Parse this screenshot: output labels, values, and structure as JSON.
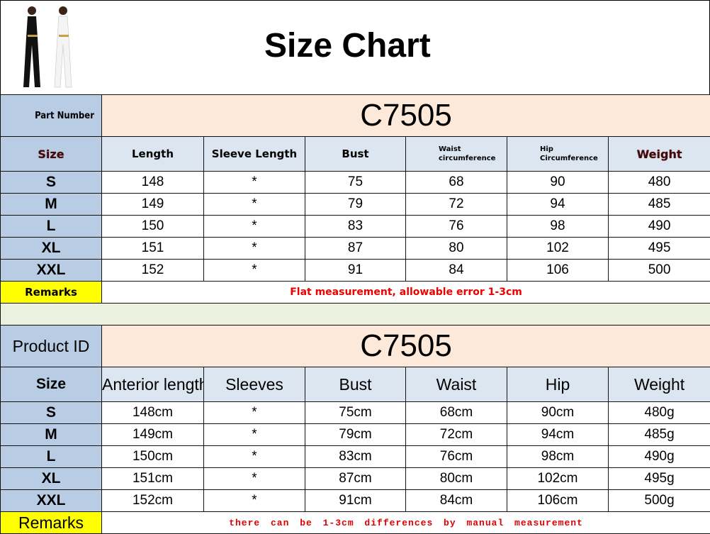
{
  "title": "Size Chart",
  "table1": {
    "part_label": "Part Number",
    "code": "C7505",
    "headers": [
      "Size",
      "Length",
      "Sleeve Length",
      "Bust",
      "Waist circumference",
      "Hip Circumference",
      "Weight"
    ],
    "rows": [
      [
        "S",
        "148",
        "*",
        "75",
        "68",
        "90",
        "480"
      ],
      [
        "M",
        "149",
        "*",
        "79",
        "72",
        "94",
        "485"
      ],
      [
        "L",
        "150",
        "*",
        "83",
        "76",
        "98",
        "490"
      ],
      [
        "XL",
        "151",
        "*",
        "87",
        "80",
        "102",
        "495"
      ],
      [
        "XXL",
        "152",
        "*",
        "91",
        "84",
        "106",
        "500"
      ]
    ],
    "remarks_label": "Remarks",
    "remarks": "Flat measurement, allowable error 1-3cm"
  },
  "table2": {
    "part_label": "Product ID",
    "code": "C7505",
    "headers": [
      "Size",
      "Anterior length",
      "Sleeves",
      "Bust",
      "Waist",
      "Hip",
      "Weight"
    ],
    "rows": [
      [
        "S",
        "148cm",
        "*",
        "75cm",
        "68cm",
        "90cm",
        "480g"
      ],
      [
        "M",
        "149cm",
        "*",
        "79cm",
        "72cm",
        "94cm",
        "485g"
      ],
      [
        "L",
        "150cm",
        "*",
        "83cm",
        "76cm",
        "98cm",
        "490g"
      ],
      [
        "XL",
        "151cm",
        "*",
        "87cm",
        "80cm",
        "102cm",
        "495g"
      ],
      [
        "XXL",
        "152cm",
        "*",
        "91cm",
        "84cm",
        "106cm",
        "500g"
      ]
    ],
    "remarks_label": "Remarks",
    "remarks": "there can be 1-3cm  differences  by manual  measurement"
  },
  "colors": {
    "header_blue": "#b8cce4",
    "light_blue": "#dce6f1",
    "peach": "#fde9d9",
    "remarks_yellow": "#ffff00",
    "remarks_red": "#e00000"
  }
}
